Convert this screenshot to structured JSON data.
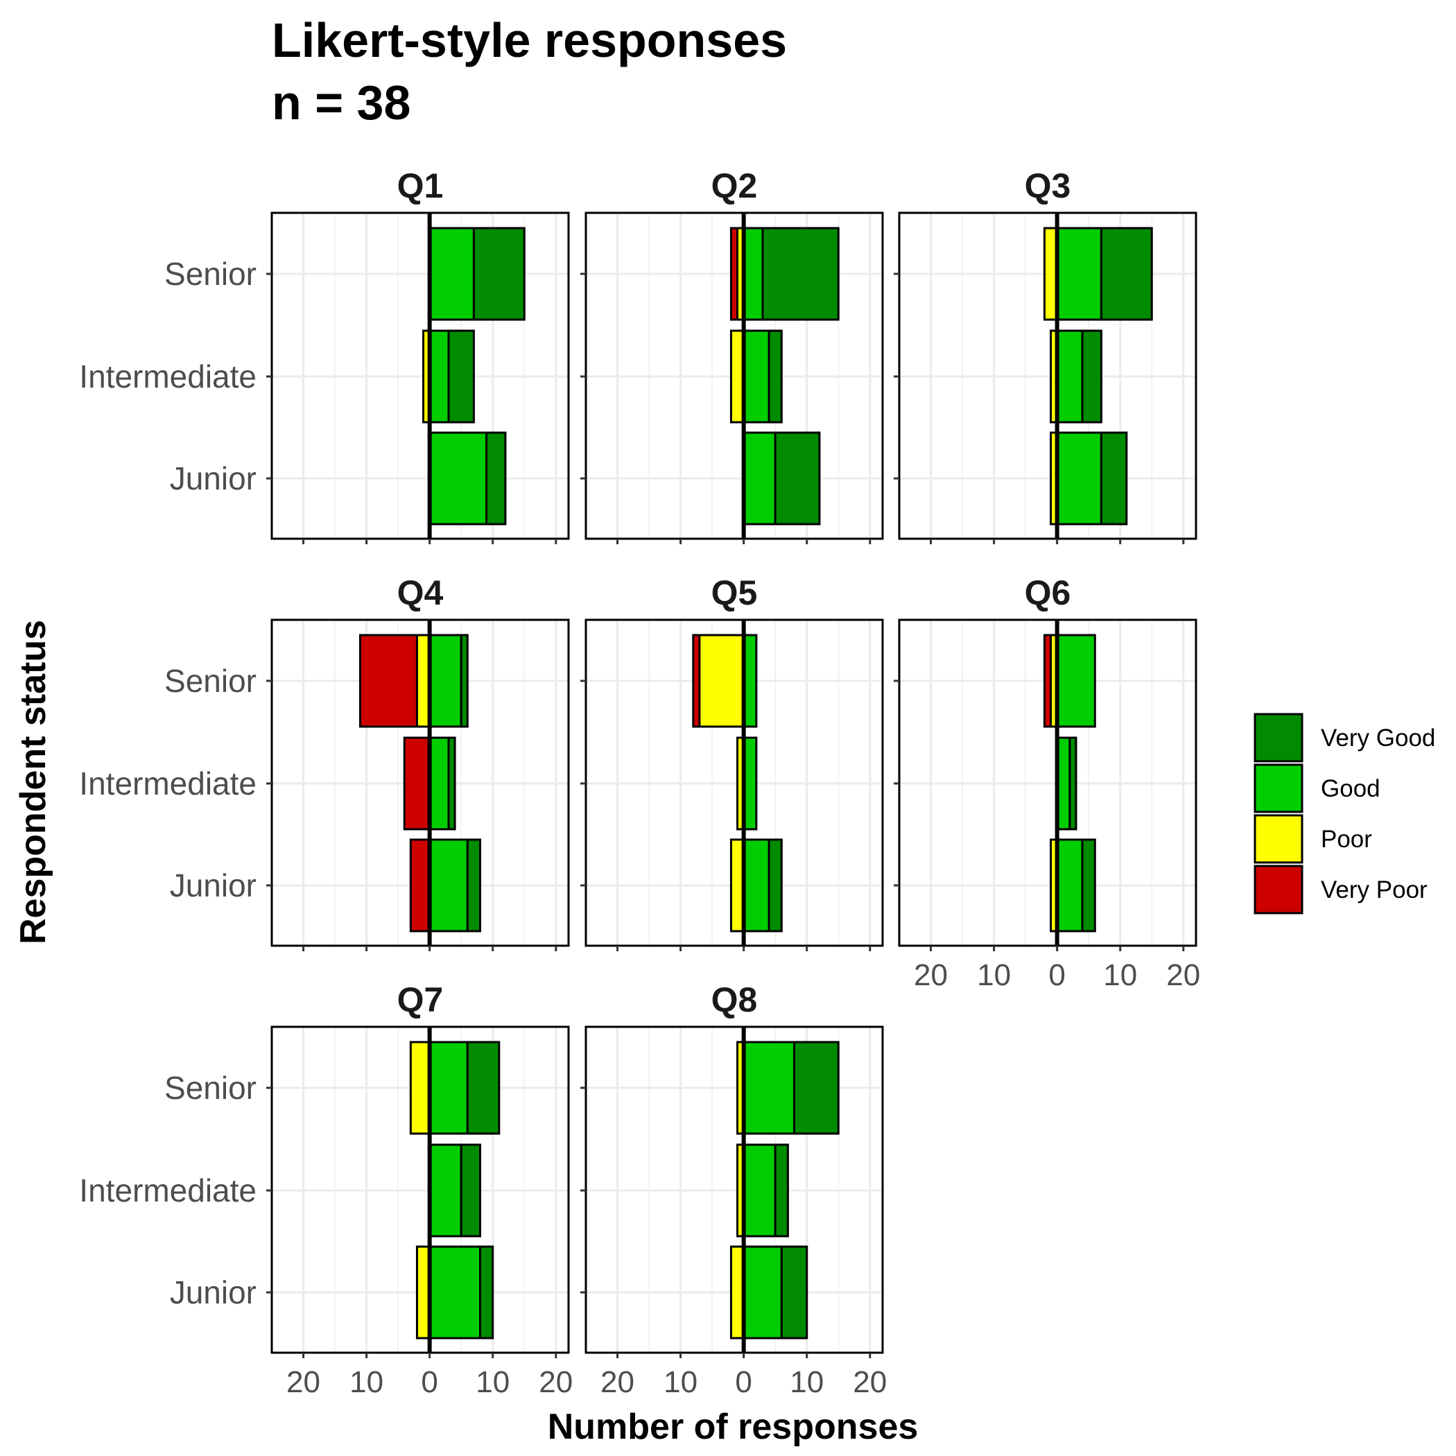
{
  "chart_data": {
    "type": "bar",
    "orientation": "horizontal-diverging-stacked",
    "title_line1": "Likert-style responses",
    "title_line2": "n = 38",
    "xlabel": "Number of responses",
    "ylabel": "Respondent status",
    "xlim": [
      -25,
      22
    ],
    "x_ticks": [
      -20,
      -10,
      0,
      10,
      20
    ],
    "x_tick_labels": [
      "20",
      "10",
      "0",
      "10",
      "20"
    ],
    "categories": [
      "Senior",
      "Intermediate",
      "Junior"
    ],
    "grid": true,
    "legend_position": "right",
    "legend": [
      {
        "key": "very_good",
        "label": "Very Good",
        "color": "#008B00"
      },
      {
        "key": "good",
        "label": "Good",
        "color": "#00CD00"
      },
      {
        "key": "poor",
        "label": "Poor",
        "color": "#FFFF00"
      },
      {
        "key": "very_poor",
        "label": "Very Poor",
        "color": "#CD0000"
      }
    ],
    "panels": [
      {
        "name": "Q1",
        "rows": [
          {
            "category": "Senior",
            "very_poor": 0,
            "poor": 0,
            "good": 7,
            "very_good": 8
          },
          {
            "category": "Intermediate",
            "very_poor": 0,
            "poor": 1,
            "good": 3,
            "very_good": 4
          },
          {
            "category": "Junior",
            "very_poor": 0,
            "poor": 0,
            "good": 9,
            "very_good": 3
          }
        ]
      },
      {
        "name": "Q2",
        "rows": [
          {
            "category": "Senior",
            "very_poor": 1,
            "poor": 1,
            "good": 3,
            "very_good": 12
          },
          {
            "category": "Intermediate",
            "very_poor": 0,
            "poor": 2,
            "good": 4,
            "very_good": 2
          },
          {
            "category": "Junior",
            "very_poor": 0,
            "poor": 0,
            "good": 5,
            "very_good": 7
          }
        ]
      },
      {
        "name": "Q3",
        "rows": [
          {
            "category": "Senior",
            "very_poor": 0,
            "poor": 2,
            "good": 7,
            "very_good": 8
          },
          {
            "category": "Intermediate",
            "very_poor": 0,
            "poor": 1,
            "good": 4,
            "very_good": 3
          },
          {
            "category": "Junior",
            "very_poor": 0,
            "poor": 1,
            "good": 7,
            "very_good": 4
          }
        ]
      },
      {
        "name": "Q4",
        "rows": [
          {
            "category": "Senior",
            "very_poor": 9,
            "poor": 2,
            "good": 5,
            "very_good": 1
          },
          {
            "category": "Intermediate",
            "very_poor": 4,
            "poor": 0,
            "good": 3,
            "very_good": 1
          },
          {
            "category": "Junior",
            "very_poor": 3,
            "poor": 0,
            "good": 6,
            "very_good": 2
          }
        ]
      },
      {
        "name": "Q5",
        "rows": [
          {
            "category": "Senior",
            "very_poor": 1,
            "poor": 7,
            "good": 2,
            "very_good": 0
          },
          {
            "category": "Intermediate",
            "very_poor": 0,
            "poor": 1,
            "good": 2,
            "very_good": 0
          },
          {
            "category": "Junior",
            "very_poor": 0,
            "poor": 2,
            "good": 4,
            "very_good": 2
          }
        ]
      },
      {
        "name": "Q6",
        "rows": [
          {
            "category": "Senior",
            "very_poor": 1,
            "poor": 1,
            "good": 6,
            "very_good": 0
          },
          {
            "category": "Intermediate",
            "very_poor": 0,
            "poor": 0,
            "good": 2,
            "very_good": 1
          },
          {
            "category": "Junior",
            "very_poor": 0,
            "poor": 1,
            "good": 4,
            "very_good": 2
          }
        ]
      },
      {
        "name": "Q7",
        "rows": [
          {
            "category": "Senior",
            "very_poor": 0,
            "poor": 3,
            "good": 6,
            "very_good": 5
          },
          {
            "category": "Intermediate",
            "very_poor": 0,
            "poor": 0,
            "good": 5,
            "very_good": 3
          },
          {
            "category": "Junior",
            "very_poor": 0,
            "poor": 2,
            "good": 8,
            "very_good": 2
          }
        ]
      },
      {
        "name": "Q8",
        "rows": [
          {
            "category": "Senior",
            "very_poor": 0,
            "poor": 1,
            "good": 8,
            "very_good": 7
          },
          {
            "category": "Intermediate",
            "very_poor": 0,
            "poor": 1,
            "good": 5,
            "very_good": 2
          },
          {
            "category": "Junior",
            "very_poor": 0,
            "poor": 2,
            "good": 6,
            "very_good": 4
          }
        ]
      }
    ]
  }
}
